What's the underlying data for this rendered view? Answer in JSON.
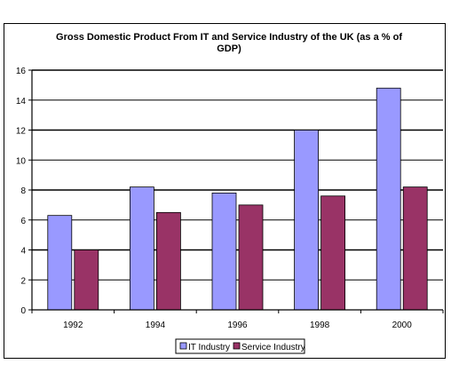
{
  "chart_data": {
    "type": "bar",
    "title_lines": [
      "Gross Domestic Product From IT and Service Industry of the UK (as a % of",
      "GDP)"
    ],
    "categories": [
      "1992",
      "1994",
      "1996",
      "1998",
      "2000"
    ],
    "series": [
      {
        "name": "IT Industry",
        "values": [
          6.3,
          8.2,
          7.8,
          12.0,
          14.8
        ],
        "color": "#9999FF"
      },
      {
        "name": "Service Industry",
        "values": [
          4.0,
          6.5,
          7.0,
          7.6,
          8.2
        ],
        "color": "#993366"
      }
    ],
    "ylim": [
      0,
      16
    ],
    "yticks": [
      "0",
      "2",
      "4",
      "6",
      "8",
      "10",
      "12",
      "14",
      "16"
    ],
    "grid": true,
    "legend_position": "bottom-center"
  }
}
